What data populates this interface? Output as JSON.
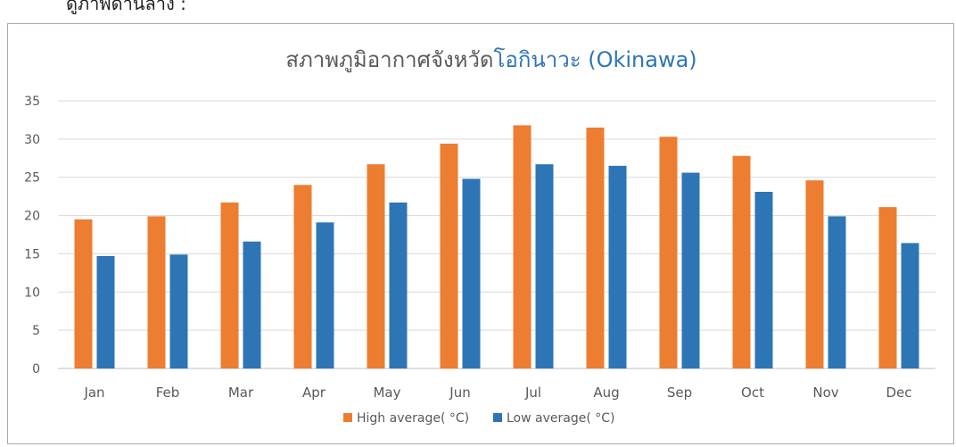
{
  "page": {
    "top_text": "ดูภาพด้านล่าง :"
  },
  "chart_data": {
    "type": "bar",
    "title_parts": [
      {
        "text": "สภาพภูมิอากาศจังหวัด",
        "color": "#595959"
      },
      {
        "text": "โอกินาวะ (Okinawa)",
        "color": "#2e75b6"
      }
    ],
    "categories": [
      "Jan",
      "Feb",
      "Mar",
      "Apr",
      "May",
      "Jun",
      "Jul",
      "Aug",
      "Sep",
      "Oct",
      "Nov",
      "Dec"
    ],
    "series": [
      {
        "name": "High average( °C)",
        "color": "#ed7d31",
        "values": [
          19.5,
          19.9,
          21.7,
          24.0,
          26.7,
          29.4,
          31.8,
          31.5,
          30.3,
          27.8,
          24.6,
          21.1
        ]
      },
      {
        "name": "Low average( °C)",
        "color": "#2e75b6",
        "values": [
          14.7,
          14.9,
          16.6,
          19.1,
          21.7,
          24.8,
          26.7,
          26.5,
          25.6,
          23.1,
          19.9,
          16.4
        ]
      }
    ],
    "yticks": [
      0,
      5,
      10,
      15,
      20,
      25,
      30,
      35
    ],
    "ylim": [
      0,
      35
    ],
    "grid": true,
    "legend_position": "bottom"
  }
}
